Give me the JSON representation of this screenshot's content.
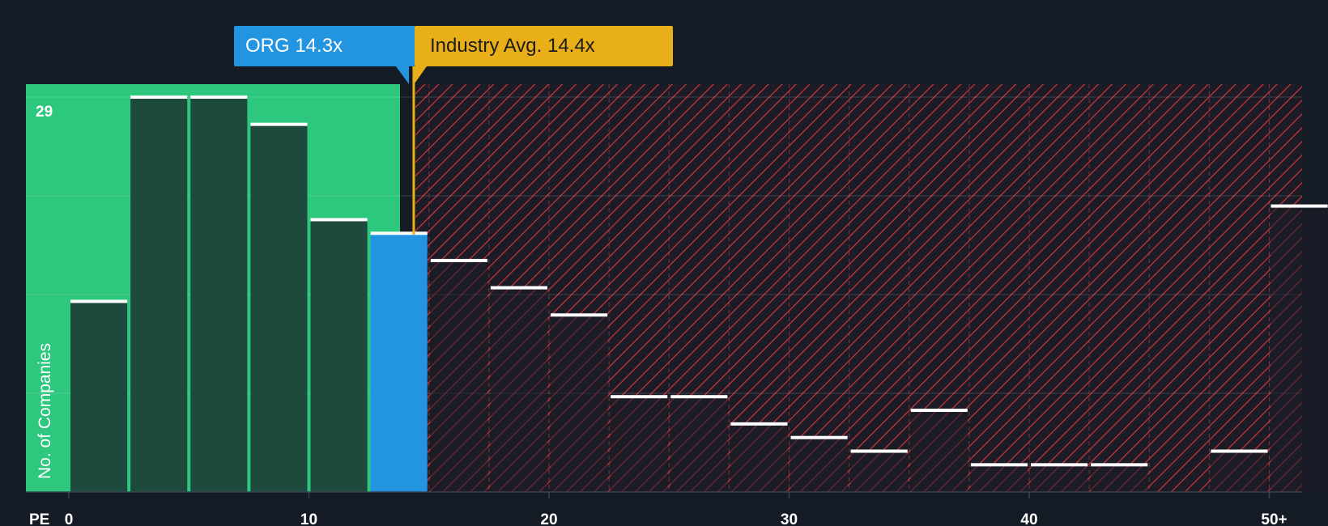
{
  "chart_data": {
    "type": "bar",
    "x_axis_title": "PE",
    "y_axis_title": "No. of Companies",
    "y_max_label": "29",
    "x_ticks": [
      "0",
      "10",
      "20",
      "30",
      "40",
      "50+"
    ],
    "bins": [
      {
        "x": "0-2.5",
        "value": 14
      },
      {
        "x": "2.5-5",
        "value": 29
      },
      {
        "x": "5-7.5",
        "value": 29
      },
      {
        "x": "7.5-10",
        "value": 27
      },
      {
        "x": "10-12.5",
        "value": 20
      },
      {
        "x": "12.5-15",
        "value": 19,
        "highlight": true
      },
      {
        "x": "15-17.5",
        "value": 17
      },
      {
        "x": "17.5-20",
        "value": 15
      },
      {
        "x": "20-22.5",
        "value": 13
      },
      {
        "x": "22.5-25",
        "value": 7
      },
      {
        "x": "25-27.5",
        "value": 7
      },
      {
        "x": "27.5-30",
        "value": 5
      },
      {
        "x": "30-32.5",
        "value": 4
      },
      {
        "x": "32.5-35",
        "value": 3
      },
      {
        "x": "35-37.5",
        "value": 6
      },
      {
        "x": "37.5-40",
        "value": 2
      },
      {
        "x": "40-42.5",
        "value": 2
      },
      {
        "x": "42.5-45",
        "value": 2
      },
      {
        "x": "45-47.5",
        "value": 0
      },
      {
        "x": "47.5-50",
        "value": 3
      },
      {
        "x": "50+",
        "value": 21
      }
    ],
    "ylim": [
      0,
      30
    ],
    "grid": true,
    "org": {
      "label": "ORG 14.3x",
      "value": 14.3
    },
    "industry_avg": {
      "label": "Industry Avg. 14.4x",
      "value": 14.4
    },
    "colors": {
      "background": "#151b24",
      "undervalued_zone": "#2dc77e",
      "undervalued_bar": "#1e4a3e",
      "highlight_bar": "#2394e0",
      "industry_line": "#e9af18",
      "overvalued_hatch": "#d1353e",
      "overvalued_bar": "#2a2730",
      "bar_cap": "#ffffff"
    }
  }
}
